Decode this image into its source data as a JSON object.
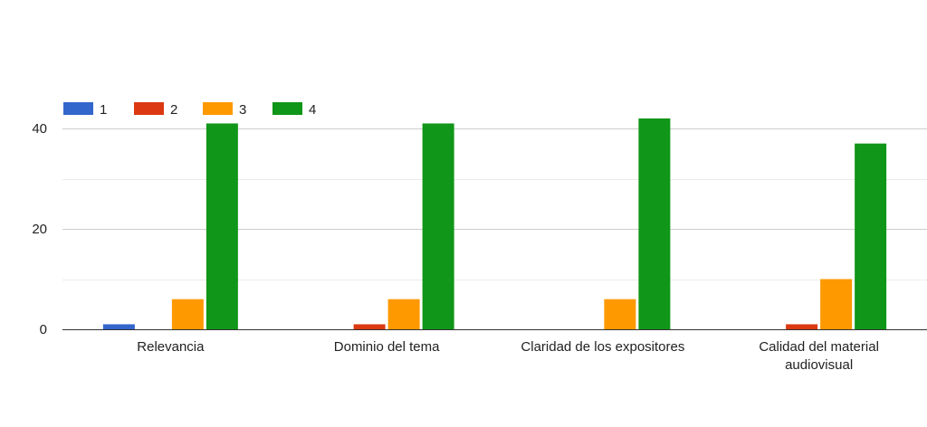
{
  "chart_data": {
    "type": "bar",
    "title": "",
    "xlabel": "",
    "ylabel": "",
    "categories": [
      [
        "Relevancia"
      ],
      [
        "Dominio del tema"
      ],
      [
        "Claridad de los expositores"
      ],
      [
        "Calidad del material",
        "audiovisual"
      ]
    ],
    "series": [
      {
        "name": "1",
        "color": "#3366cc",
        "values": [
          1,
          0,
          0,
          0
        ]
      },
      {
        "name": "2",
        "color": "#dc3912",
        "values": [
          0,
          1,
          0,
          1
        ]
      },
      {
        "name": "3",
        "color": "#ff9900",
        "values": [
          6,
          6,
          6,
          10
        ]
      },
      {
        "name": "4",
        "color": "#109618",
        "values": [
          41,
          41,
          42,
          37
        ]
      }
    ],
    "ylim": [
      0,
      40
    ],
    "yticks": [
      0,
      20,
      40
    ],
    "grid": true,
    "legend_position": "top-left"
  }
}
